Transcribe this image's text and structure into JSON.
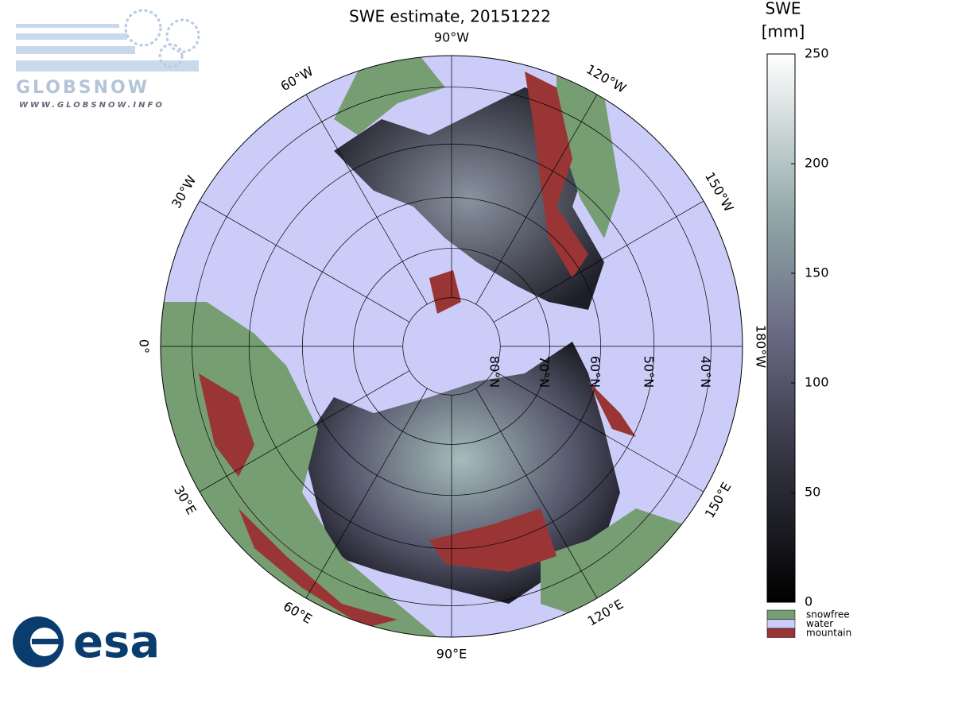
{
  "header": {
    "title": "SWE estimate, 20151222"
  },
  "logo": {
    "name": "GLOBSNOW",
    "url": "WWW.GLOBSNOW.INFO",
    "agency": "esa"
  },
  "map": {
    "meridians": [
      {
        "value": -90,
        "label": "90°W"
      },
      {
        "value": -120,
        "label": "120°W"
      },
      {
        "value": -150,
        "label": "150°W"
      },
      {
        "value": 180,
        "label": "180°W"
      },
      {
        "value": 150,
        "label": "150°E"
      },
      {
        "value": 120,
        "label": "120°E"
      },
      {
        "value": 90,
        "label": "90°E"
      },
      {
        "value": 60,
        "label": "60°E"
      },
      {
        "value": 30,
        "label": "30°E"
      },
      {
        "value": 0,
        "label": "0°"
      },
      {
        "value": -30,
        "label": "30°W"
      },
      {
        "value": -60,
        "label": "60°W"
      }
    ],
    "parallels": [
      {
        "value": 80,
        "label": "80°N"
      },
      {
        "value": 70,
        "label": "70°N"
      },
      {
        "value": 60,
        "label": "60°N"
      },
      {
        "value": 50,
        "label": "50°N"
      },
      {
        "value": 40,
        "label": "40°N"
      }
    ]
  },
  "colorbar": {
    "title": [
      "SWE",
      "[mm]"
    ],
    "range": [
      0,
      250
    ],
    "ticks": [
      0,
      50,
      100,
      150,
      200,
      250
    ]
  },
  "legend": [
    {
      "label": "snowfree",
      "color": "#779d73"
    },
    {
      "label": "water",
      "color": "#ccccf8"
    },
    {
      "label": "mountain",
      "color": "#9a3535"
    }
  ]
}
